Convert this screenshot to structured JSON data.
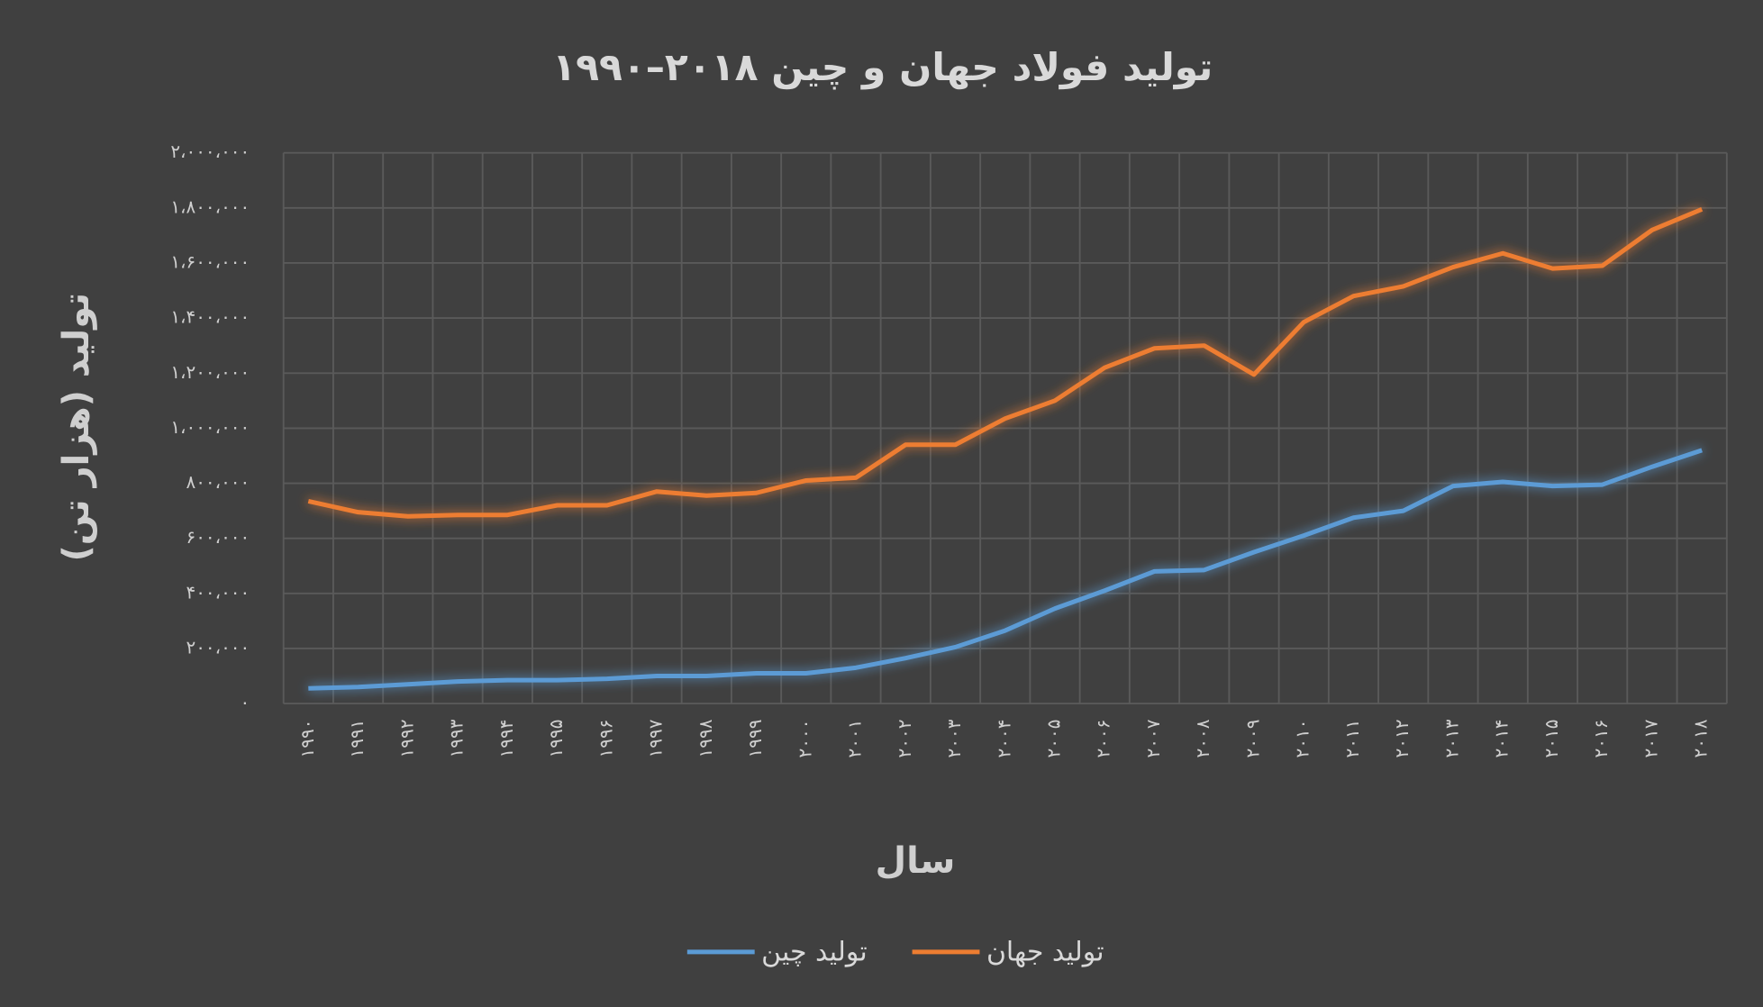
{
  "chart_data": {
    "type": "line",
    "title": "تولید فولاد جهان و چین ۲۰۱۸–۱۹۹۰",
    "x_label": "سال",
    "y_label": "تولید (هزار تن)",
    "categories": [
      "۱۹۹۰",
      "۱۹۹۱",
      "۱۹۹۲",
      "۱۹۹۳",
      "۱۹۹۴",
      "۱۹۹۵",
      "۱۹۹۶",
      "۱۹۹۷",
      "۱۹۹۸",
      "۱۹۹۹",
      "۲۰۰۰",
      "۲۰۰۱",
      "۲۰۰۲",
      "۲۰۰۳",
      "۲۰۰۴",
      "۲۰۰۵",
      "۲۰۰۶",
      "۲۰۰۷",
      "۲۰۰۸",
      "۲۰۰۹",
      "۲۰۱۰",
      "۲۰۱۱",
      "۲۰۱۲",
      "۲۰۱۳",
      "۲۰۱۴",
      "۲۰۱۵",
      "۲۰۱۶",
      "۲۰۱۷",
      "۲۰۱۸"
    ],
    "series": [
      {
        "name": "تولید جهان",
        "color": "#ed7d31",
        "values": [
          735000,
          695000,
          680000,
          685000,
          685000,
          720000,
          720000,
          770000,
          755000,
          765000,
          810000,
          820000,
          940000,
          940000,
          1035000,
          1100000,
          1220000,
          1290000,
          1300000,
          1195000,
          1385000,
          1480000,
          1515000,
          1585000,
          1635000,
          1580000,
          1590000,
          1720000,
          1795000
        ]
      },
      {
        "name": "تولید چین",
        "color": "#5b9bd5",
        "values": [
          55000,
          60000,
          70000,
          80000,
          85000,
          85000,
          90000,
          100000,
          100000,
          110000,
          110000,
          130000,
          165000,
          205000,
          265000,
          345000,
          410000,
          480000,
          485000,
          550000,
          610000,
          675000,
          700000,
          790000,
          805000,
          790000,
          795000,
          860000,
          920000
        ]
      }
    ],
    "ylim": [
      0,
      2000000
    ],
    "yticks": [
      {
        "value": 0,
        "label": "۰"
      },
      {
        "value": 200000,
        "label": "۲۰۰،۰۰۰"
      },
      {
        "value": 400000,
        "label": "۴۰۰،۰۰۰"
      },
      {
        "value": 600000,
        "label": "۶۰۰،۰۰۰"
      },
      {
        "value": 800000,
        "label": "۸۰۰،۰۰۰"
      },
      {
        "value": 1000000,
        "label": "۱،۰۰۰،۰۰۰"
      },
      {
        "value": 1200000,
        "label": "۱،۲۰۰،۰۰۰"
      },
      {
        "value": 1400000,
        "label": "۱،۴۰۰،۰۰۰"
      },
      {
        "value": 1600000,
        "label": "۱،۶۰۰،۰۰۰"
      },
      {
        "value": 1800000,
        "label": "۱،۸۰۰،۰۰۰"
      },
      {
        "value": 2000000,
        "label": "۲،۰۰۰،۰۰۰"
      }
    ],
    "grid": true,
    "legend_position": "bottom"
  }
}
